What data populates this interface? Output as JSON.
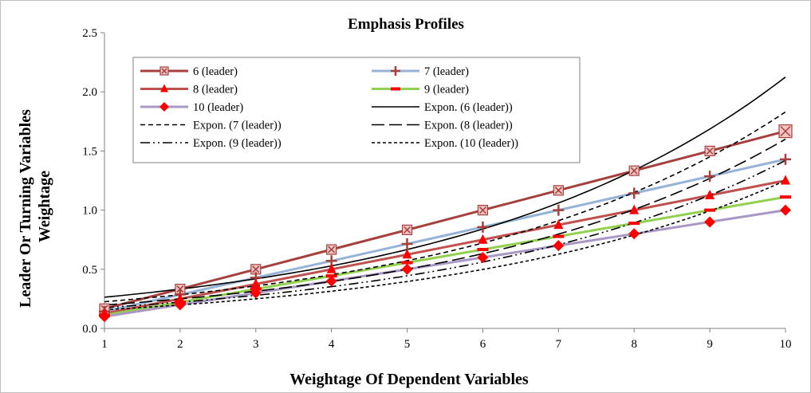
{
  "chart_data": {
    "type": "line",
    "title": "Emphasis Profiles",
    "xlabel": "Weightage Of Dependent Variables",
    "ylabel": "Leader Or Turning Variables Weightage",
    "ylabel_lines": [
      "Leader Or Turning Variables",
      "Weightage"
    ],
    "x": [
      1,
      2,
      3,
      4,
      5,
      6,
      7,
      8,
      9,
      10
    ],
    "xlim": [
      1,
      10
    ],
    "ylim": [
      0,
      2.5
    ],
    "yticks": [
      "0.0",
      "0.5",
      "1.0",
      "1.5",
      "2.0",
      "2.5"
    ],
    "xticks": [
      "1",
      "2",
      "3",
      "4",
      "5",
      "6",
      "7",
      "8",
      "9",
      "10"
    ],
    "grid": false,
    "legend_position": "top-left inside plot",
    "series": [
      {
        "name": "6 (leader)",
        "color": "#a5403d",
        "marker": "square-x",
        "values": [
          0.167,
          0.333,
          0.5,
          0.667,
          0.833,
          1.0,
          1.167,
          1.333,
          1.5,
          1.667
        ]
      },
      {
        "name": "7 (leader)",
        "color": "#95b3d7",
        "marker": "plus",
        "marker_color": "#a5403d",
        "values": [
          0.143,
          0.286,
          0.429,
          0.571,
          0.714,
          0.857,
          1.0,
          1.143,
          1.286,
          1.429
        ]
      },
      {
        "name": "8 (leader)",
        "color": "#c0504d",
        "marker": "triangle",
        "marker_color": "#ff0000",
        "values": [
          0.125,
          0.25,
          0.375,
          0.5,
          0.625,
          0.75,
          0.875,
          1.0,
          1.125,
          1.25
        ]
      },
      {
        "name": "9 (leader)",
        "color": "#92d050",
        "marker": "dash",
        "marker_color": "#ff0000",
        "values": [
          0.111,
          0.222,
          0.333,
          0.444,
          0.556,
          0.667,
          0.778,
          0.889,
          1.0,
          1.111
        ]
      },
      {
        "name": "10 (leader)",
        "color": "#a997c4",
        "marker": "diamond",
        "marker_color": "#ff0000",
        "values": [
          0.1,
          0.2,
          0.3,
          0.4,
          0.5,
          0.6,
          0.7,
          0.8,
          0.9,
          1.0
        ]
      }
    ],
    "trendlines": [
      {
        "name": "Expon. (6 (leader))",
        "dash": "solid",
        "values": [
          0.264,
          0.331,
          0.415,
          0.52,
          0.652,
          0.817,
          1.024,
          1.283,
          1.608,
          2.125
        ]
      },
      {
        "name": "Expon. (7 (leader))",
        "dash": "short",
        "values": [
          0.226,
          0.284,
          0.356,
          0.446,
          0.559,
          0.7,
          0.878,
          1.1,
          1.378,
          1.83
        ]
      },
      {
        "name": "Expon. (8 (leader))",
        "dash": "long",
        "values": [
          0.198,
          0.248,
          0.311,
          0.39,
          0.489,
          0.613,
          0.768,
          0.962,
          1.206,
          1.6
        ]
      },
      {
        "name": "Expon. (9 (leader))",
        "dash": "dash-dot-dot",
        "values": [
          0.176,
          0.221,
          0.277,
          0.347,
          0.435,
          0.545,
          0.683,
          0.856,
          1.072,
          1.42
        ]
      },
      {
        "name": "Expon. (10 (leader))",
        "dash": "fine",
        "values": [
          0.158,
          0.198,
          0.248,
          0.311,
          0.39,
          0.488,
          0.612,
          0.767,
          0.961,
          1.25
        ]
      }
    ]
  }
}
